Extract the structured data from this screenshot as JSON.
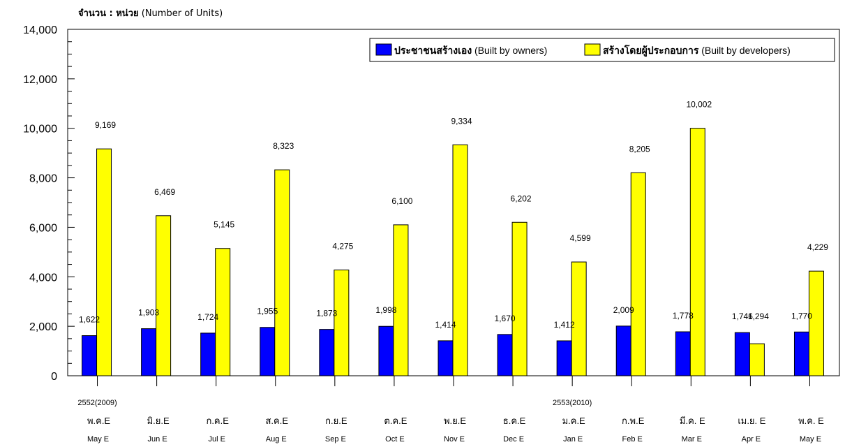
{
  "chart_data": {
    "type": "bar",
    "ylabel_thai": "จำนวน : หน่วย",
    "ylabel_en": "(Number of Units)",
    "ylim": [
      0,
      14000
    ],
    "yticks": [
      "0",
      "2,000",
      "4,000",
      "6,000",
      "8,000",
      "10,000",
      "12,000",
      "14,000"
    ],
    "grid": false,
    "legend_position": "top-right",
    "categories_thai": [
      "พ.ค.E",
      "มิ.ย.E",
      "ก.ค.E",
      "ส.ค.E",
      "ก.ย.E",
      "ต.ค.E",
      "พ.ย.E",
      "ธ.ค.E",
      "ม.ค.E",
      "ก.พ.E",
      "มี.ค. E",
      "เม.ย. E",
      "พ.ค. E"
    ],
    "categories": [
      "May E",
      "Jun E",
      "Jul E",
      "Aug E",
      "Sep E",
      "Oct E",
      "Nov E",
      "Dec E",
      "Jan E",
      "Feb E",
      "Mar E",
      "Apr E",
      "May E"
    ],
    "year_labels": [
      {
        "index": 0,
        "label": "2552(2009)"
      },
      {
        "index": 8,
        "label": "2553(2010)"
      }
    ],
    "series": [
      {
        "name": "ประชาชนสร้างเอง (Built by owners)",
        "name_thai": "ประชาชนสร้างเอง",
        "name_en": "(Built by owners)",
        "color": "#0000ff",
        "values": [
          1622,
          1903,
          1724,
          1955,
          1873,
          1998,
          1414,
          1670,
          1412,
          2009,
          1778,
          1746,
          1770
        ],
        "labels": [
          "1,622",
          "1,903",
          "1,724",
          "1,955",
          "1,873",
          "1,998",
          "1,414",
          "1,670",
          "1,412",
          "2,009",
          "1,778",
          "1,746",
          "1,770"
        ]
      },
      {
        "name": "สร้างโดยผู้ประกอบการ (Built by developers)",
        "name_thai": "สร้างโดยผู้ประกอบการ",
        "name_en": "(Built by developers)",
        "color": "#ffff00",
        "values": [
          9169,
          6469,
          5145,
          8323,
          4275,
          6100,
          9334,
          6202,
          4599,
          8205,
          10002,
          1294,
          4229
        ],
        "labels": [
          "9,169",
          "6,469",
          "5,145",
          "8,323",
          "4,275",
          "6,100",
          "9,334",
          "6,202",
          "4,599",
          "8,205",
          "10,002",
          "1,294",
          "4,229"
        ]
      }
    ]
  }
}
